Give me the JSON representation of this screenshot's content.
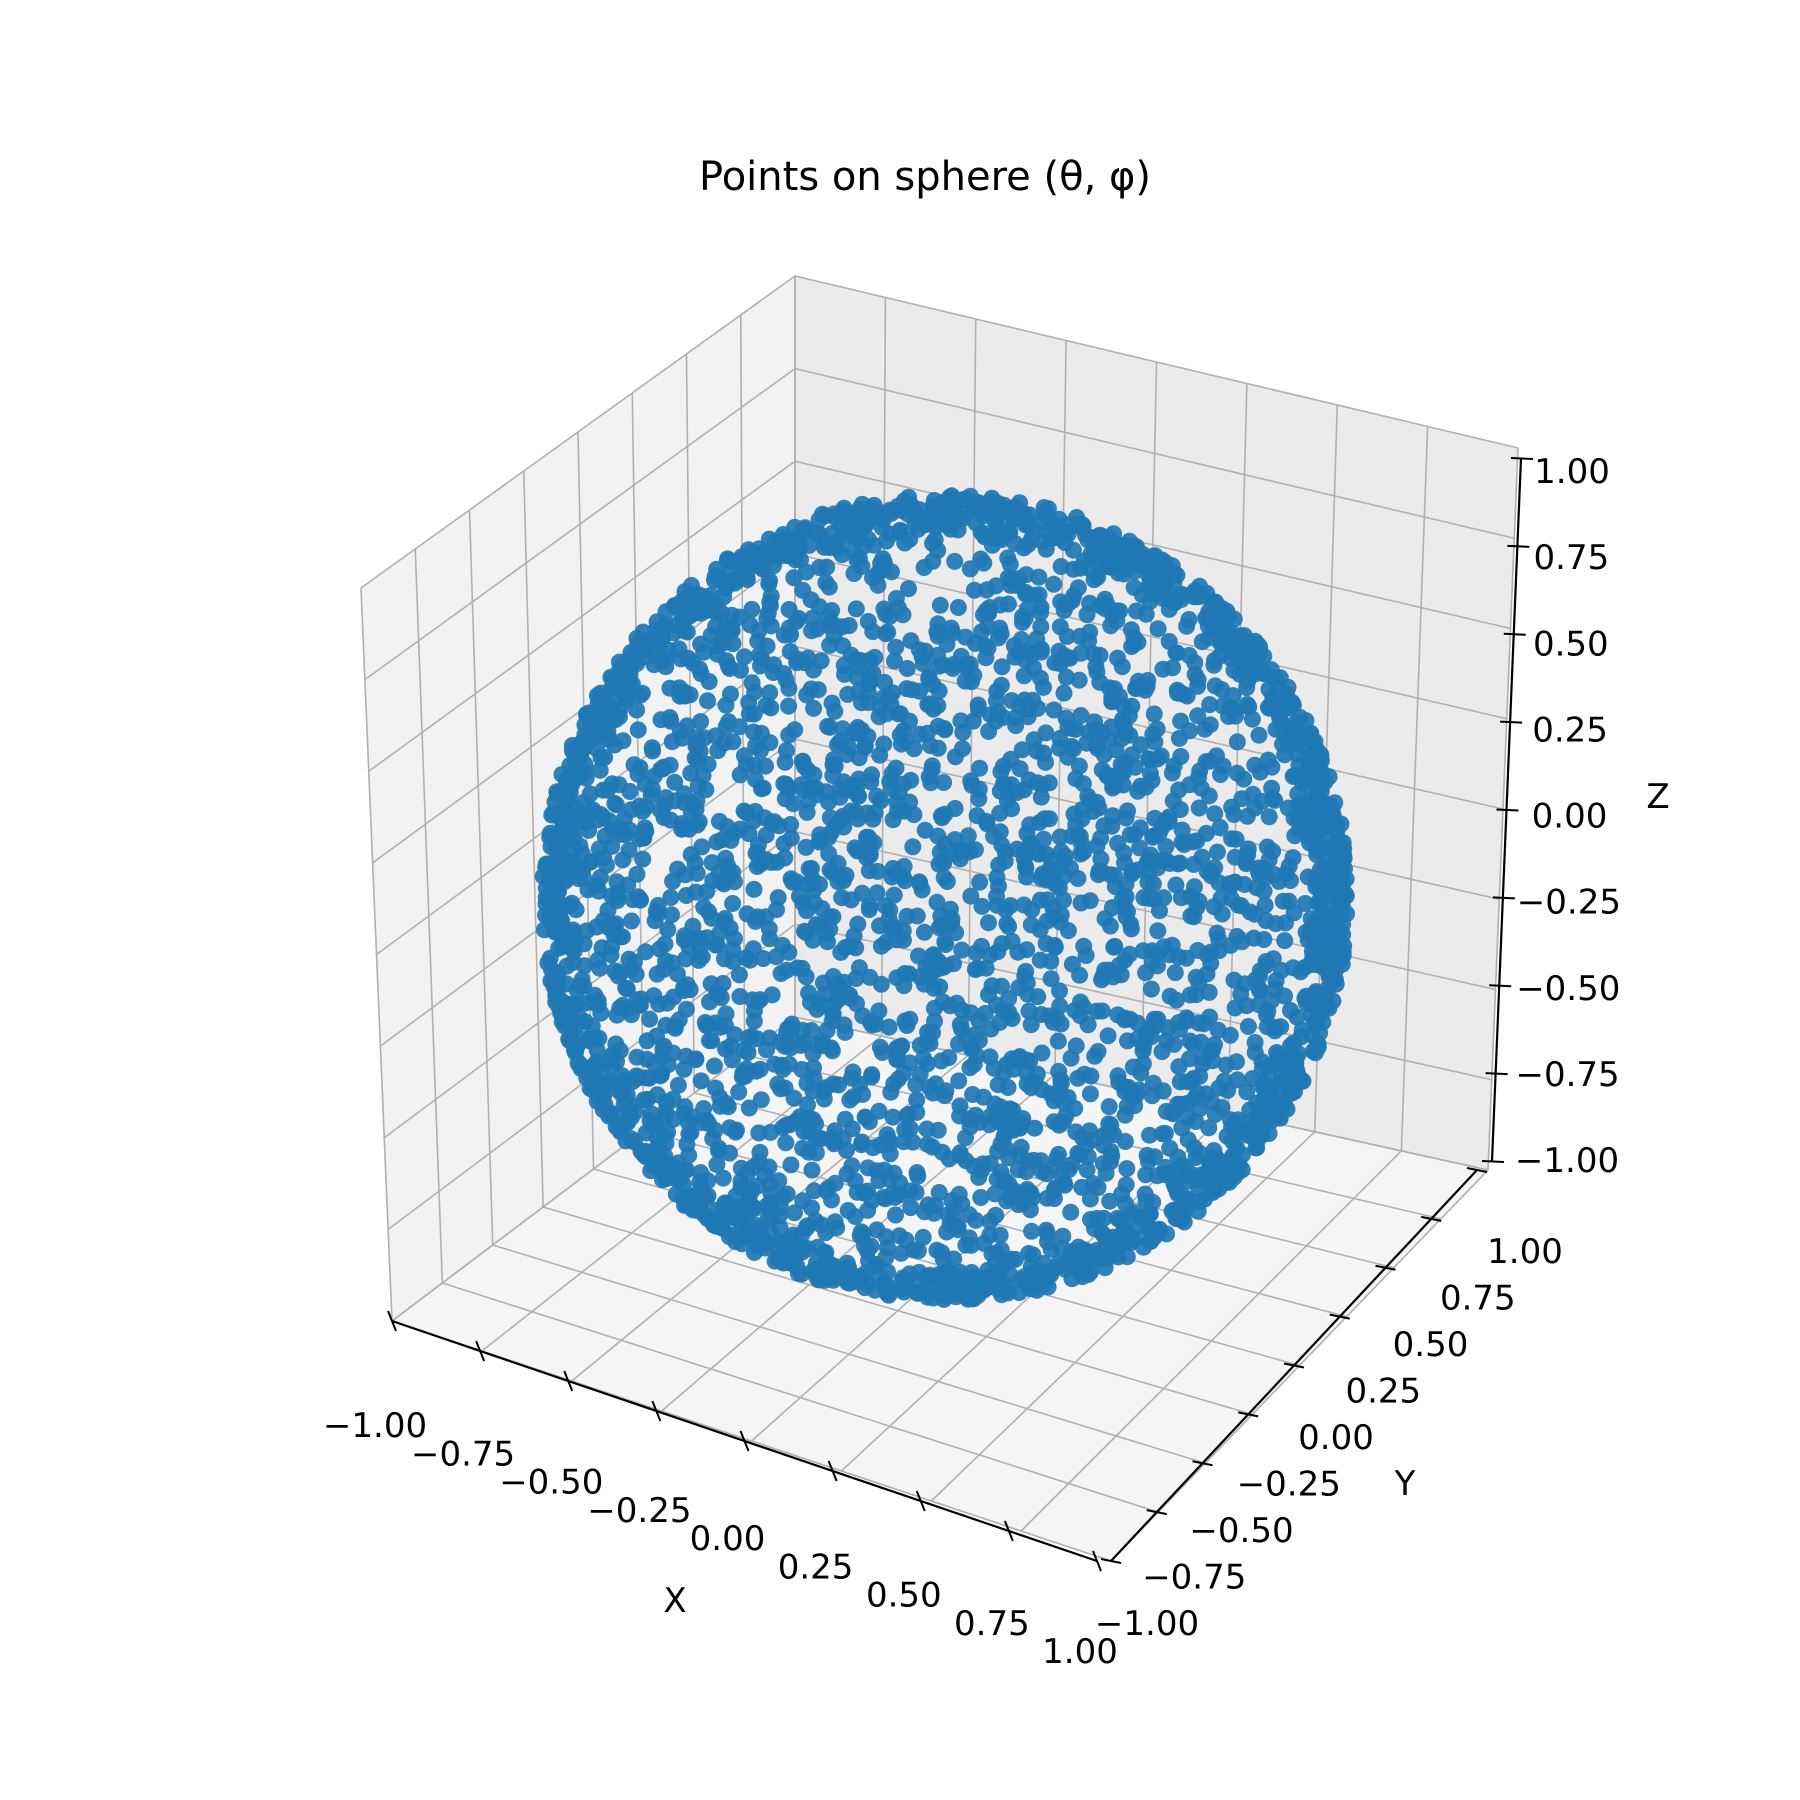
{
  "chart_data": {
    "type": "scatter",
    "title": "Points on sphere (θ, φ)",
    "xlabel": "X",
    "ylabel": "Y",
    "zlabel": "Z",
    "xlim": [
      -1.0,
      1.0
    ],
    "ylim": [
      -1.0,
      1.0
    ],
    "zlim": [
      -1.0,
      1.0
    ],
    "x_ticks": [
      "−1.00",
      "−0.75",
      "−0.50",
      "−0.25",
      "0.00",
      "0.25",
      "0.50",
      "0.75",
      "1.00"
    ],
    "y_ticks": [
      "−1.00",
      "−0.75",
      "−0.50",
      "−0.25",
      "0.00",
      "0.25",
      "0.50",
      "0.75",
      "1.00"
    ],
    "z_ticks": [
      "−1.00",
      "−0.75",
      "−0.50",
      "−0.25",
      "0.00",
      "0.25",
      "0.50",
      "0.75",
      "1.00"
    ],
    "grid": true,
    "marker_color": "#1f77b4",
    "series": [
      {
        "shape": "unit sphere",
        "radius": 1.0,
        "center": [
          0,
          0,
          0
        ],
        "distribution": "random uniform in θ and φ"
      }
    ]
  }
}
